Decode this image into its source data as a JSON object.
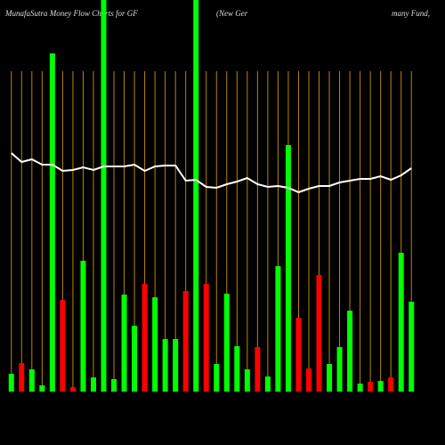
{
  "chart_data": {
    "type": "bar",
    "title_parts": [
      "MunafaSutra  Money Flow  Charts for GF",
      "(New  Ger",
      "many Fund,"
    ],
    "categories": [
      null,
      null,
      null,
      null,
      null,
      null,
      null,
      null,
      null,
      null,
      null,
      null,
      null,
      null,
      null,
      null,
      null,
      null,
      null,
      null,
      null,
      null,
      null,
      null,
      null,
      null,
      null,
      null,
      null,
      null,
      null,
      null,
      null,
      null,
      null,
      null,
      null,
      null,
      null,
      null
    ],
    "values": [
      20,
      32,
      25,
      7,
      380,
      103,
      5,
      147,
      16,
      460,
      14,
      109,
      74,
      121,
      106,
      59,
      59,
      113,
      460,
      121,
      31,
      110,
      51,
      25,
      50,
      17,
      141,
      277,
      83,
      26,
      131,
      31,
      50,
      91,
      9,
      11,
      12,
      16,
      156,
      101
    ],
    "colors": [
      "#00ff00",
      "#ff0000",
      "#00ff00",
      "#00ff00",
      "#00ff00",
      "#ff0000",
      "#ff0000",
      "#00ff00",
      "#00ff00",
      "#00ff00",
      "#00ff00",
      "#00ff00",
      "#00ff00",
      "#ff0000",
      "#00ff00",
      "#00ff00",
      "#00ff00",
      "#ff0000",
      "#00ff00",
      "#ff0000",
      "#00ff00",
      "#00ff00",
      "#00ff00",
      "#00ff00",
      "#ff0000",
      "#00ff00",
      "#00ff00",
      "#00ff00",
      "#ff0000",
      "#ff0000",
      "#ff0000",
      "#00ff00",
      "#00ff00",
      "#00ff00",
      "#00ff00",
      "#ff0000",
      "#00ff00",
      "#ff0000",
      "#00ff00",
      "#00ff00"
    ],
    "line": {
      "color": "#ffffff",
      "values": [
        268,
        258,
        261,
        255,
        255,
        248,
        249,
        252,
        249,
        253,
        253,
        253,
        255,
        248,
        253,
        254,
        254,
        237,
        238,
        230,
        229,
        233,
        236,
        240,
        233,
        230,
        231,
        229,
        224,
        228,
        231,
        231,
        235,
        237,
        239,
        239,
        242,
        238,
        243,
        251
      ]
    },
    "ylim": [
      0,
      440
    ],
    "grid": true,
    "grid_color": "#b8860b"
  }
}
